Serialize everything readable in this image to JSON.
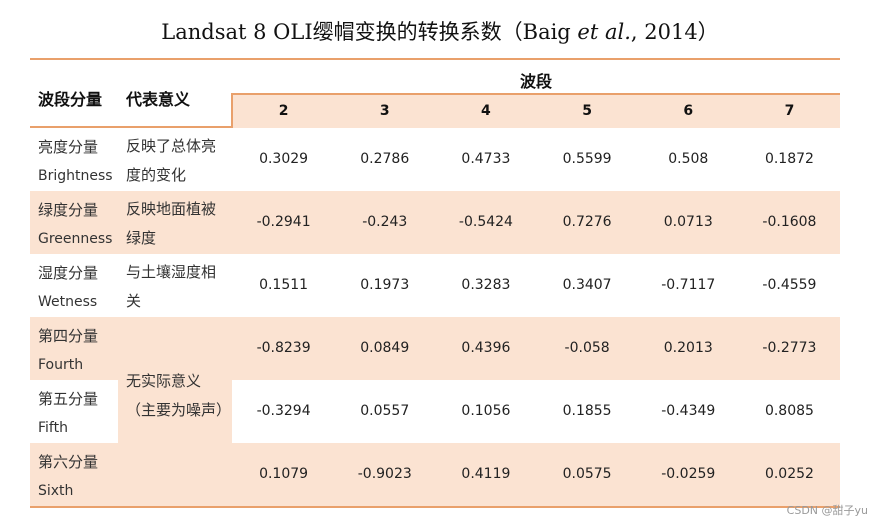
{
  "title_prefix": "Landsat 8 OLI缨帽变换的转换系数（Baig ",
  "title_italic": "et al.",
  "title_suffix": ", 2014）",
  "headers": {
    "component": "波段分量",
    "meaning": "代表意义",
    "band": "波段",
    "bands": [
      "2",
      "3",
      "4",
      "5",
      "6",
      "7"
    ]
  },
  "rows": [
    {
      "cn": "亮度分量",
      "en": "Brightness",
      "meaning": "反映了总体亮度的变化",
      "values": [
        "0.3029",
        "0.2786",
        "0.4733",
        "0.5599",
        "0.508",
        "0.1872"
      ]
    },
    {
      "cn": "绿度分量",
      "en": "Greenness",
      "meaning": "反映地面植被绿度",
      "values": [
        "-0.2941",
        "-0.243",
        "-0.5424",
        "0.7276",
        "0.0713",
        "-0.1608"
      ]
    },
    {
      "cn": "湿度分量",
      "en": "Wetness",
      "meaning": "与土壤湿度相关",
      "values": [
        "0.1511",
        "0.1973",
        "0.3283",
        "0.3407",
        "-0.7117",
        "-0.4559"
      ]
    },
    {
      "cn": "第四分量",
      "en": "Fourth",
      "meaning": "",
      "values": [
        "-0.8239",
        "0.0849",
        "0.4396",
        "-0.058",
        "0.2013",
        "-0.2773"
      ]
    },
    {
      "cn": "第五分量",
      "en": "Fifth",
      "meaning": "",
      "values": [
        "-0.3294",
        "0.0557",
        "0.1056",
        "0.1855",
        "-0.4349",
        "0.8085"
      ]
    },
    {
      "cn": "第六分量",
      "en": "Sixth",
      "meaning": "",
      "values": [
        "0.1079",
        "-0.9023",
        "0.4119",
        "0.0575",
        "-0.0259",
        "0.0252"
      ]
    }
  ],
  "merged_meaning": "无实际意义（主要为噪声）",
  "watermark": "CSDN @甜子yu",
  "colors": {
    "accent_line": "#e9a06b",
    "shade": "#fbe3d2"
  }
}
